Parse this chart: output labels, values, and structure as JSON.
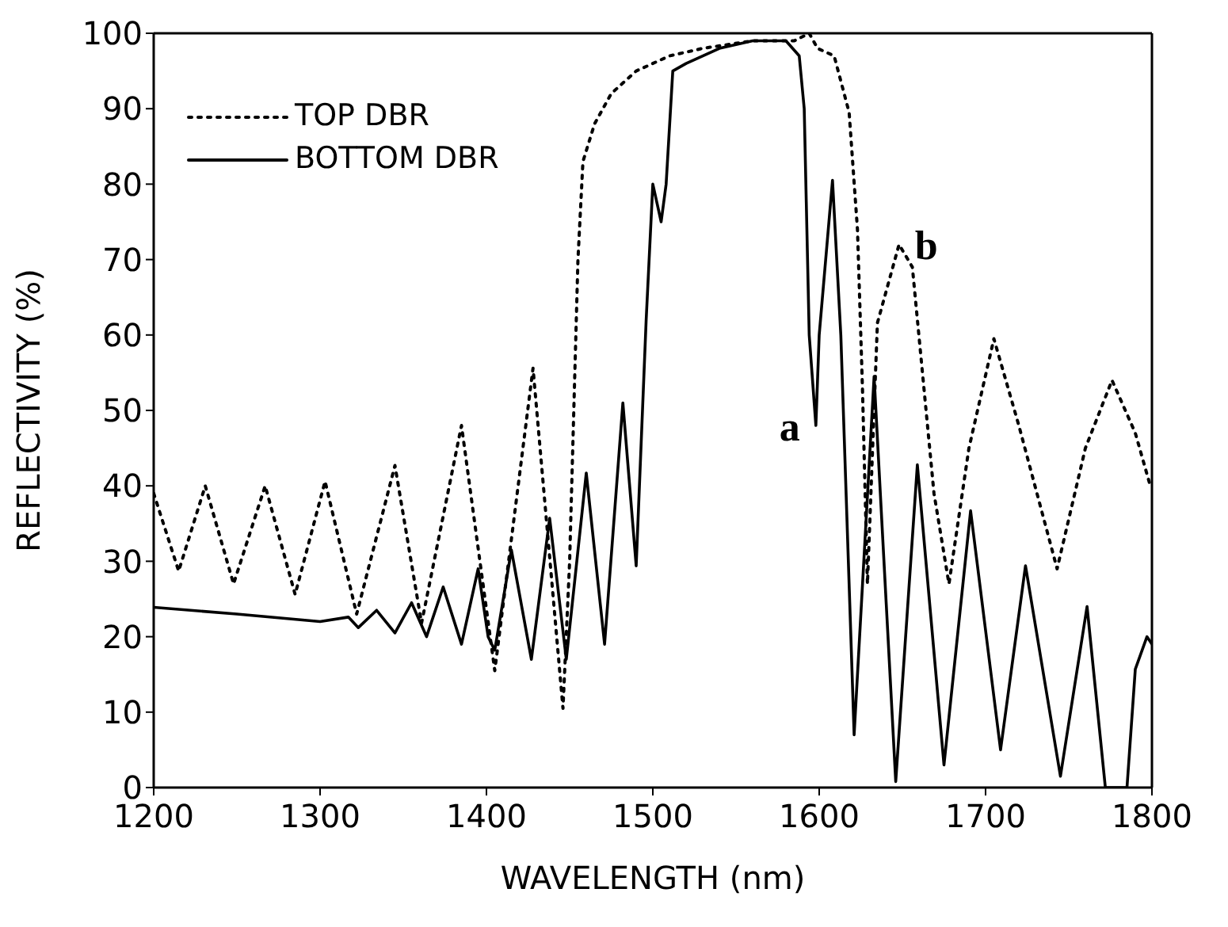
{
  "chart_data": {
    "type": "line",
    "xlabel": "WAVELENGTH (nm)",
    "ylabel": "REFLECTIVITY (%)",
    "xlim": [
      1200,
      1800
    ],
    "xticks": [
      1200,
      1300,
      1400,
      1500,
      1600,
      1700,
      1800
    ],
    "ylim": [
      0,
      100
    ],
    "yticks": [
      0,
      10,
      20,
      30,
      40,
      50,
      60,
      70,
      80,
      90,
      100
    ],
    "legend": "top left",
    "marker": "none",
    "series": [
      {
        "name": "TOP DBR",
        "color": "#000000",
        "line_style": "dotted",
        "x": [
          1200,
          1215,
          1231,
          1248,
          1267,
          1285,
          1303,
          1322,
          1345,
          1361,
          1385,
          1405,
          1428,
          1446,
          1450,
          1455,
          1458,
          1465,
          1475,
          1490,
          1510,
          1530,
          1560,
          1585,
          1594,
          1599,
          1609,
          1618,
          1623,
          1626,
          1629,
          1635,
          1648,
          1656,
          1669,
          1678,
          1690,
          1705,
          1720,
          1743,
          1760,
          1776,
          1790,
          1799
        ],
        "values": [
          39,
          28.7,
          40,
          27,
          40,
          25.6,
          40.6,
          23,
          42.7,
          21.8,
          48,
          15.5,
          55.6,
          10.5,
          30,
          70,
          83,
          88,
          92,
          95,
          97,
          98,
          99,
          99,
          100,
          98,
          97,
          89.5,
          74,
          53,
          27,
          61.6,
          72,
          69,
          39,
          27,
          45,
          59.5,
          48,
          29,
          45,
          54,
          47,
          40
        ]
      },
      {
        "name": "BOTTOM DBR",
        "color": "#000000",
        "line_style": "solid",
        "x": [
          1200,
          1250,
          1300,
          1317,
          1323,
          1334,
          1345,
          1355,
          1364,
          1374,
          1385,
          1395,
          1401,
          1405,
          1415,
          1427,
          1438,
          1448,
          1460,
          1471,
          1482,
          1490,
          1496,
          1500,
          1505,
          1508,
          1512,
          1520,
          1540,
          1560,
          1580,
          1588,
          1591,
          1594,
          1598,
          1600,
          1608,
          1613,
          1621,
          1633,
          1646,
          1659,
          1675,
          1691,
          1709,
          1724,
          1745,
          1761,
          1772,
          1785,
          1790,
          1797,
          1800
        ],
        "values": [
          23.9,
          23,
          22,
          22.6,
          21.2,
          23.5,
          20.5,
          24.5,
          20,
          26.6,
          19,
          29,
          20,
          18.2,
          31.5,
          17,
          35.7,
          17,
          41.7,
          19,
          51,
          29.4,
          62,
          80,
          75,
          80,
          95,
          96,
          98,
          99,
          99,
          97,
          90,
          60,
          48,
          60,
          80.5,
          60,
          7,
          54.5,
          0.8,
          42.8,
          3,
          36.7,
          5,
          29.4,
          1.5,
          24,
          0,
          0,
          15.7,
          20,
          19
        ]
      }
    ],
    "annotations": [
      {
        "text": "a",
        "x": 1598,
        "y": 48
      },
      {
        "text": "b",
        "x": 1648,
        "y": 72
      }
    ]
  }
}
